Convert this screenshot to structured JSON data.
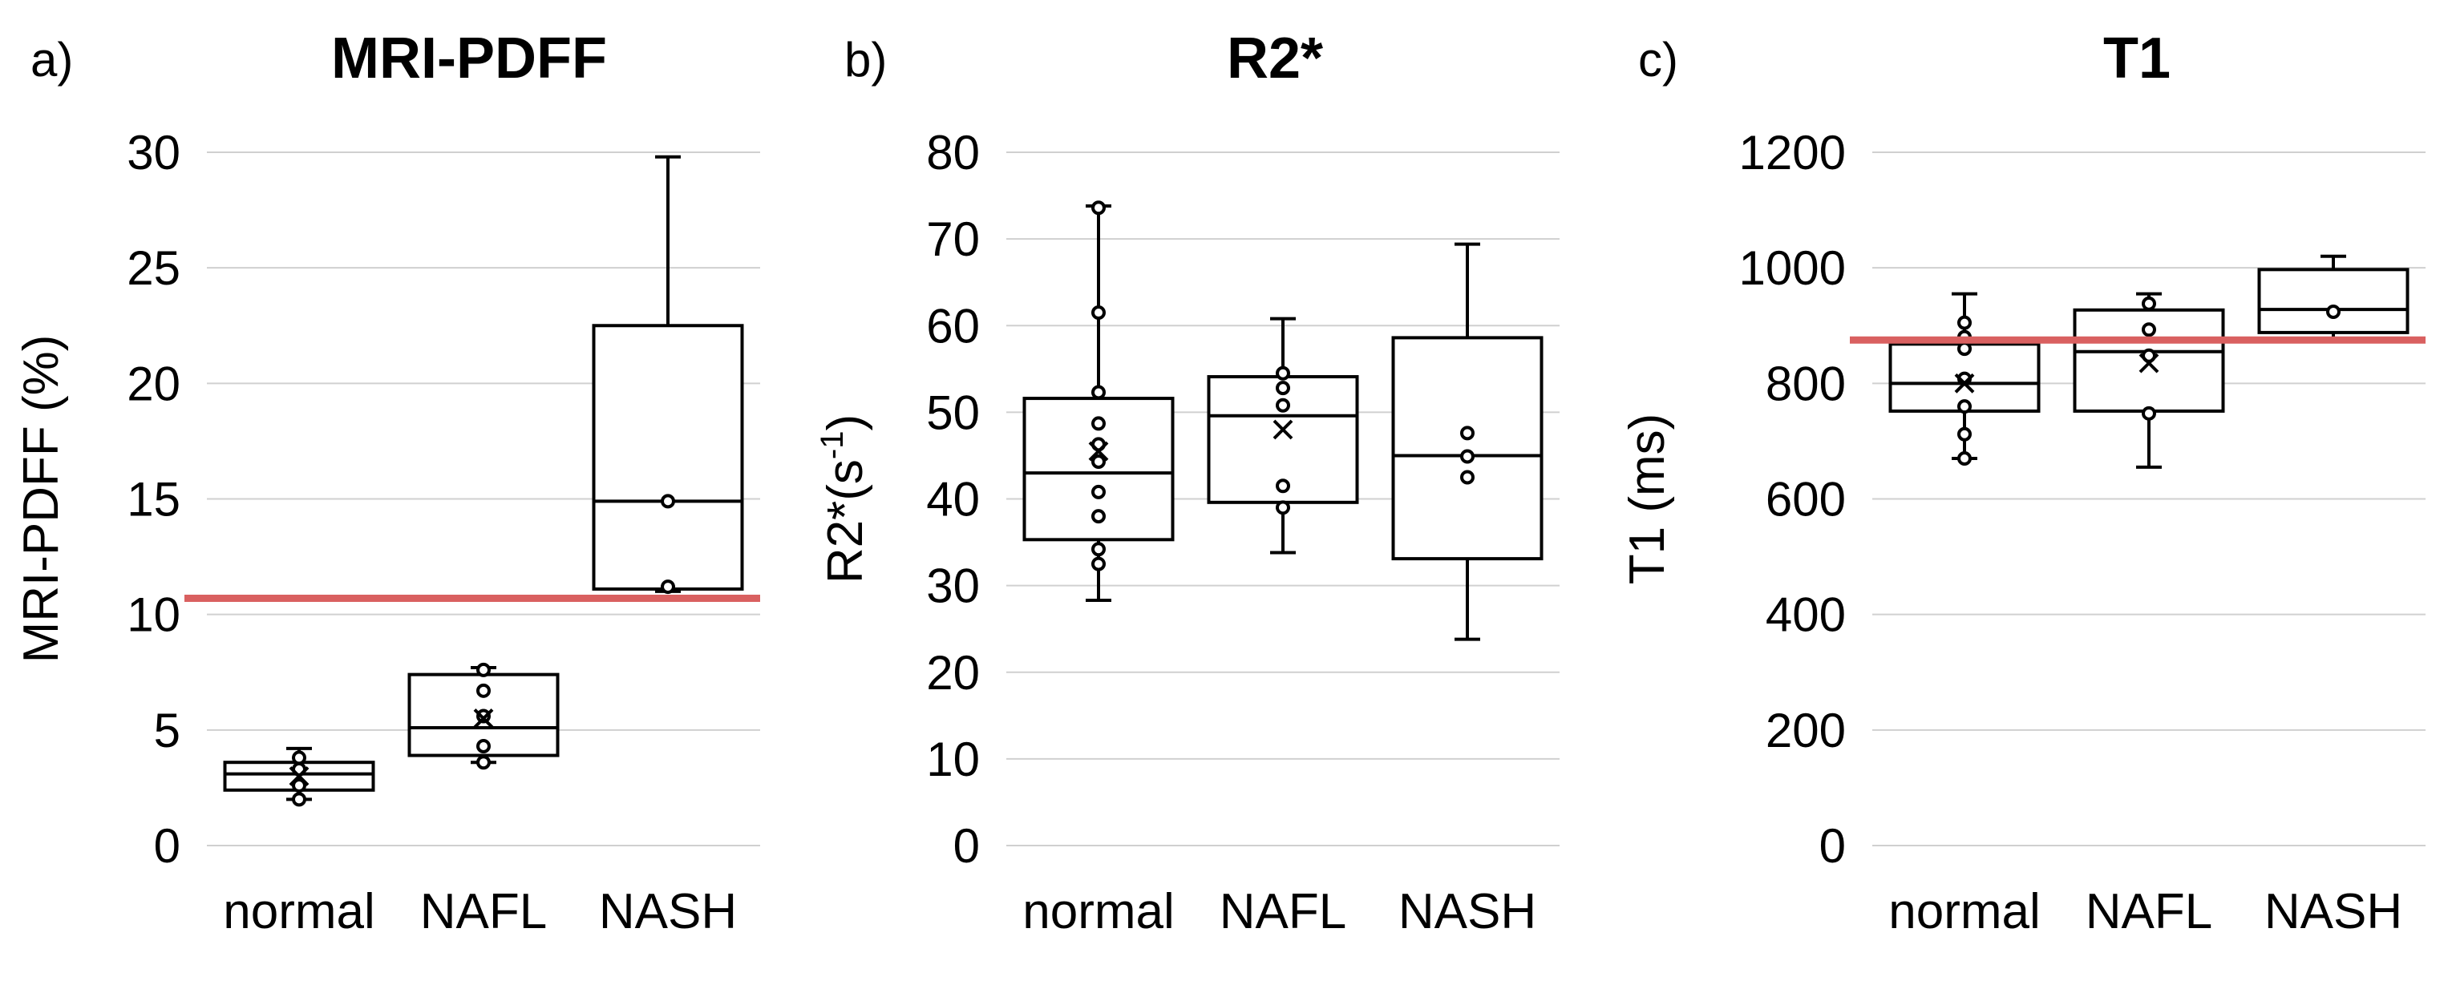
{
  "chart_data": [
    {
      "type": "box",
      "panel_label": "a)",
      "title": "MRI-PDFF",
      "ylabel": "MRI-PDFF (%)",
      "ylim": [
        0,
        30
      ],
      "yticks": [
        "0",
        "5",
        "10",
        "15",
        "20",
        "25",
        "30"
      ],
      "categories": [
        "normal",
        "NAFL",
        "NASH"
      ],
      "threshold": 10.7,
      "threshold_color": "#d96060",
      "boxes": [
        {
          "category": "normal",
          "min": 2.0,
          "q1": 2.4,
          "median": 3.1,
          "q3": 3.6,
          "max": 4.2,
          "mean": 3.0,
          "points": [
            2.0,
            2.6,
            3.3,
            3.8
          ]
        },
        {
          "category": "NAFL",
          "min": 3.6,
          "q1": 3.9,
          "median": 5.1,
          "q3": 7.4,
          "max": 7.7,
          "mean": 5.5,
          "points": [
            3.6,
            4.3,
            5.6,
            6.7,
            7.6
          ]
        },
        {
          "category": "NASH",
          "min": 11.0,
          "q1": 11.1,
          "median": 14.9,
          "q3": 22.5,
          "max": 29.8,
          "mean": null,
          "points": [
            11.2,
            14.9
          ]
        }
      ]
    },
    {
      "type": "box",
      "panel_label": "b)",
      "title": "R2*",
      "ylabel": "R2*(s",
      "ylabel_sup": "-1",
      "ylabel_tail": ")",
      "ylim": [
        0,
        80
      ],
      "yticks": [
        "0",
        "10",
        "20",
        "30",
        "40",
        "50",
        "60",
        "70",
        "80"
      ],
      "categories": [
        "normal",
        "NAFL",
        "NASH"
      ],
      "threshold": null,
      "boxes": [
        {
          "category": "normal",
          "min": 28.3,
          "q1": 35.3,
          "median": 43.0,
          "q3": 51.6,
          "max": 73.8,
          "mean": 45.5,
          "points": [
            32.5,
            34.2,
            38.0,
            40.8,
            44.3,
            46.3,
            48.7,
            52.3,
            61.5,
            73.6
          ]
        },
        {
          "category": "NAFL",
          "min": 33.8,
          "q1": 39.6,
          "median": 49.6,
          "q3": 54.1,
          "max": 60.8,
          "mean": 48.0,
          "points": [
            39.0,
            41.5,
            50.8,
            52.8,
            54.5
          ]
        },
        {
          "category": "NASH",
          "min": 23.8,
          "q1": 33.1,
          "median": 45.0,
          "q3": 58.6,
          "max": 69.4,
          "mean": null,
          "points": [
            42.5,
            44.9,
            47.6
          ]
        }
      ]
    },
    {
      "type": "box",
      "panel_label": "c)",
      "title": "T1",
      "ylabel": "T1 (ms)",
      "ylim": [
        0,
        1200
      ],
      "yticks": [
        "0",
        "200",
        "400",
        "600",
        "800",
        "1000",
        "1200"
      ],
      "categories": [
        "normal",
        "NAFL",
        "NASH"
      ],
      "threshold": 875,
      "threshold_color": "#d96060",
      "boxes": [
        {
          "category": "normal",
          "min": 670,
          "q1": 752,
          "median": 800,
          "q3": 868,
          "max": 955,
          "mean": 800,
          "points": [
            670,
            712,
            760,
            808,
            860,
            880,
            905
          ]
        },
        {
          "category": "NAFL",
          "min": 655,
          "q1": 752,
          "median": 855,
          "q3": 927,
          "max": 955,
          "mean": 835,
          "points": [
            748,
            848,
            893,
            938
          ]
        },
        {
          "category": "NASH",
          "min": 877,
          "q1": 888,
          "median": 928,
          "q3": 997,
          "max": 1020,
          "mean": null,
          "points": [
            924
          ]
        }
      ]
    }
  ]
}
